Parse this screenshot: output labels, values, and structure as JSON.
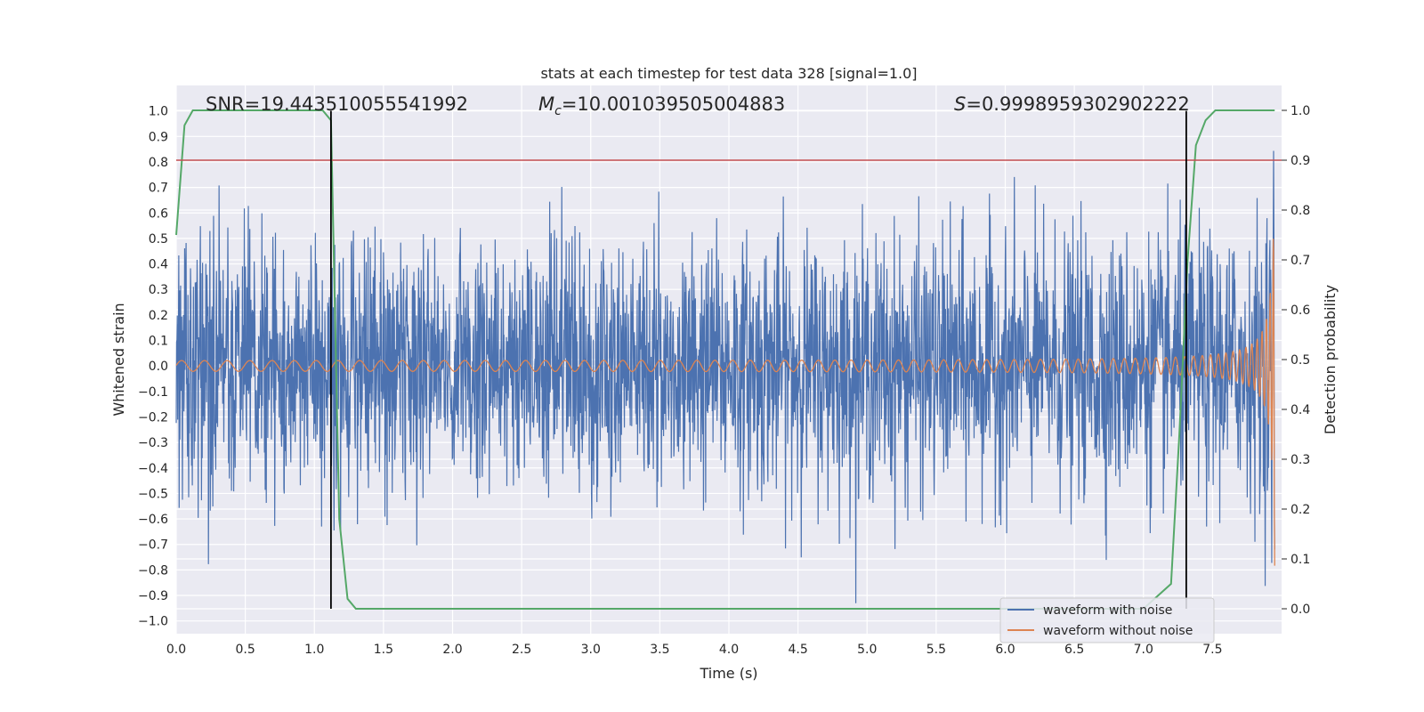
{
  "chart_data": {
    "type": "line",
    "title": "stats at each timestep for test data 328 [signal=1.0]",
    "xlabel": "Time (s)",
    "ylabel": "Whitened strain",
    "y2label": "Detection probability",
    "xlim": [
      0.0,
      8.0
    ],
    "ylim": [
      -1.05,
      1.1
    ],
    "y2lim": [
      -0.05,
      1.05
    ],
    "x_ticks": [
      0.0,
      0.5,
      1.0,
      1.5,
      2.0,
      2.5,
      3.0,
      3.5,
      4.0,
      4.5,
      5.0,
      5.5,
      6.0,
      6.5,
      7.0,
      7.5
    ],
    "y_ticks": [
      1.0,
      0.9,
      0.8,
      0.7,
      0.6,
      0.5,
      0.4,
      0.3,
      0.2,
      0.1,
      0.0,
      -0.1,
      -0.2,
      -0.3,
      -0.4,
      -0.5,
      -0.6,
      -0.7,
      -0.8,
      -0.9,
      -1.0
    ],
    "y2_ticks": [
      1.0,
      0.9,
      0.8,
      0.7,
      0.6,
      0.5,
      0.4,
      0.3,
      0.2,
      0.1,
      0.0
    ],
    "grid": true,
    "legend_position": "bottom-right",
    "series": [
      {
        "name": "waveform with noise",
        "color": "#4c72b0",
        "kind": "noisy-strain",
        "typical_amplitude": 0.3,
        "peak_max": 0.85,
        "peak_min": -0.95
      },
      {
        "name": "waveform without noise",
        "color": "#dd8452",
        "kind": "chirp",
        "amplitude_start": 0.02,
        "amplitude_end": 0.8,
        "merger_time": 7.95
      },
      {
        "color": "#55a868",
        "axis": "right",
        "x": [
          0.0,
          0.06,
          0.12,
          0.2,
          0.3,
          0.4,
          0.5,
          0.6,
          0.7,
          0.8,
          0.9,
          1.0,
          1.06,
          1.12,
          1.18,
          1.24,
          1.3,
          1.4,
          2.0,
          3.0,
          4.0,
          5.0,
          6.0,
          7.0,
          7.2,
          7.26,
          7.32,
          7.38,
          7.45,
          7.52,
          7.6,
          7.7,
          7.8,
          7.95
        ],
        "y": [
          0.75,
          0.97,
          1.0,
          1.0,
          1.0,
          1.0,
          1.0,
          1.0,
          1.0,
          1.0,
          1.0,
          1.0,
          1.0,
          0.98,
          0.18,
          0.02,
          0.0,
          0.0,
          0.0,
          0.0,
          0.0,
          0.0,
          0.0,
          0.0,
          0.05,
          0.35,
          0.7,
          0.93,
          0.98,
          1.0,
          1.0,
          1.0,
          1.0,
          1.0
        ]
      }
    ],
    "threshold": {
      "color": "#c44e52",
      "y2": 0.9
    },
    "vertical_markers": [
      {
        "x": 1.12,
        "color": "#000000"
      },
      {
        "x": 7.31,
        "color": "#000000"
      }
    ],
    "annotations": {
      "snr": "SNR=19.443510055541992",
      "mc_symbol": "M",
      "mc_subscript": "c",
      "mc_value": "=10.001039505004883",
      "s_symbol": "S",
      "s_value": "=0.9998959302902222"
    }
  }
}
